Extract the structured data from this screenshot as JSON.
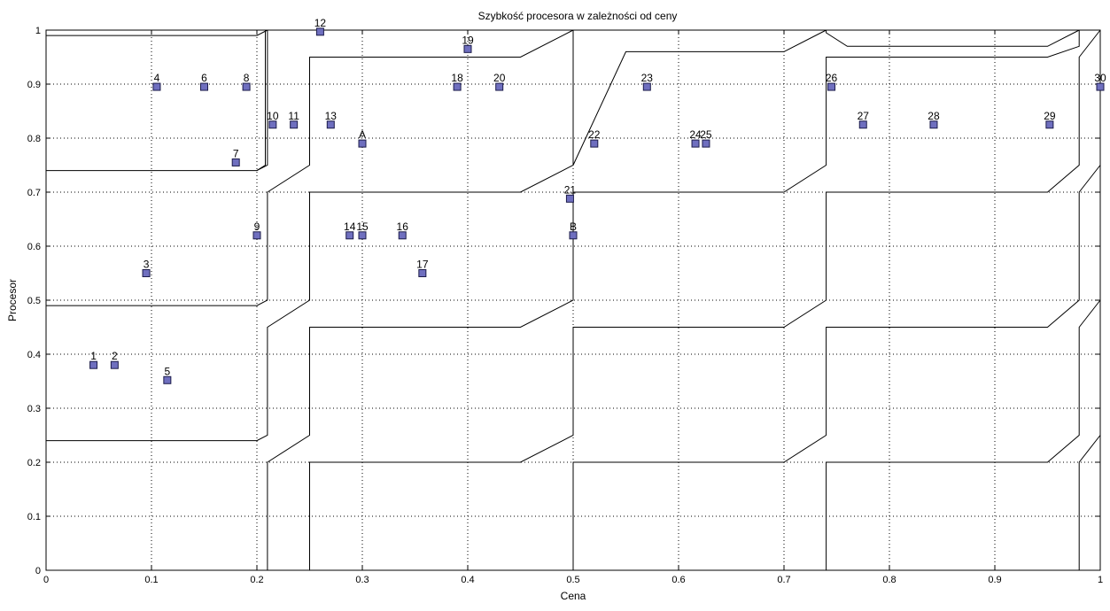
{
  "chart_data": {
    "type": "scatter",
    "title": "Szybkość procesora w zależności od ceny",
    "xlabel": "Cena",
    "ylabel": "Procesor",
    "xlim": [
      0,
      1
    ],
    "ylim": [
      0,
      1
    ],
    "grid": true,
    "xticks": [
      "0",
      "0.1",
      "0.2",
      "0.3",
      "0.4",
      "0.5",
      "0.6",
      "0.7",
      "0.8",
      "0.9",
      "1"
    ],
    "yticks": [
      "0",
      "0.1",
      "0.2",
      "0.3",
      "0.4",
      "0.5",
      "0.6",
      "0.7",
      "0.8",
      "0.9",
      "1"
    ],
    "marker_color": "#6f6fbf",
    "points": [
      {
        "label": "1",
        "x": 0.045,
        "y": 0.38
      },
      {
        "label": "2",
        "x": 0.065,
        "y": 0.38
      },
      {
        "label": "3",
        "x": 0.095,
        "y": 0.55
      },
      {
        "label": "4",
        "x": 0.105,
        "y": 0.895
      },
      {
        "label": "5",
        "x": 0.115,
        "y": 0.352
      },
      {
        "label": "6",
        "x": 0.15,
        "y": 0.895
      },
      {
        "label": "7",
        "x": 0.18,
        "y": 0.755
      },
      {
        "label": "8",
        "x": 0.19,
        "y": 0.895
      },
      {
        "label": "9",
        "x": 0.2,
        "y": 0.62
      },
      {
        "label": "10",
        "x": 0.215,
        "y": 0.825
      },
      {
        "label": "11",
        "x": 0.235,
        "y": 0.825
      },
      {
        "label": "12",
        "x": 0.26,
        "y": 0.997
      },
      {
        "label": "13",
        "x": 0.27,
        "y": 0.825
      },
      {
        "label": "A",
        "x": 0.3,
        "y": 0.79
      },
      {
        "label": "14",
        "x": 0.288,
        "y": 0.62
      },
      {
        "label": "15",
        "x": 0.3,
        "y": 0.62
      },
      {
        "label": "16",
        "x": 0.338,
        "y": 0.62
      },
      {
        "label": "17",
        "x": 0.357,
        "y": 0.55
      },
      {
        "label": "18",
        "x": 0.39,
        "y": 0.895
      },
      {
        "label": "19",
        "x": 0.4,
        "y": 0.965
      },
      {
        "label": "20",
        "x": 0.43,
        "y": 0.895
      },
      {
        "label": "21",
        "x": 0.497,
        "y": 0.688
      },
      {
        "label": "B",
        "x": 0.5,
        "y": 0.62
      },
      {
        "label": "22",
        "x": 0.52,
        "y": 0.79
      },
      {
        "label": "23",
        "x": 0.57,
        "y": 0.895
      },
      {
        "label": "24",
        "x": 0.616,
        "y": 0.79
      },
      {
        "label": "25",
        "x": 0.626,
        "y": 0.79
      },
      {
        "label": "26",
        "x": 0.745,
        "y": 0.895
      },
      {
        "label": "27",
        "x": 0.775,
        "y": 0.825
      },
      {
        "label": "28",
        "x": 0.842,
        "y": 0.825
      },
      {
        "label": "29",
        "x": 0.952,
        "y": 0.825
      },
      {
        "label": "30",
        "x": 1.0,
        "y": 0.895
      }
    ],
    "regions": [
      [
        [
          0,
          0.99
        ],
        [
          0.2,
          0.99
        ],
        [
          0.21,
          1.0
        ]
      ],
      [
        [
          0,
          0.74
        ],
        [
          0.2,
          0.74
        ],
        [
          0.208,
          0.75
        ],
        [
          0.208,
          1.0
        ]
      ],
      [
        [
          0.21,
          1.0
        ],
        [
          0.21,
          0.75
        ],
        [
          0.2,
          0.74
        ]
      ],
      [
        [
          0,
          0.49
        ],
        [
          0.2,
          0.49
        ],
        [
          0.21,
          0.5
        ],
        [
          0.21,
          0.7
        ],
        [
          0.25,
          0.75
        ],
        [
          0.25,
          0.95
        ],
        [
          0.45,
          0.95
        ],
        [
          0.5,
          1.0
        ]
      ],
      [
        [
          0,
          0.24
        ],
        [
          0.2,
          0.24
        ],
        [
          0.21,
          0.25
        ],
        [
          0.21,
          0.45
        ],
        [
          0.25,
          0.5
        ],
        [
          0.25,
          0.7
        ],
        [
          0.45,
          0.7
        ],
        [
          0.5,
          0.75
        ],
        [
          0.5,
          1.0
        ]
      ],
      [
        [
          0.21,
          0
        ],
        [
          0.21,
          0.2
        ],
        [
          0.25,
          0.25
        ],
        [
          0.25,
          0.45
        ],
        [
          0.45,
          0.45
        ],
        [
          0.5,
          0.5
        ],
        [
          0.5,
          0.7
        ],
        [
          0.7,
          0.7
        ],
        [
          0.74,
          0.75
        ],
        [
          0.74,
          0.95
        ],
        [
          0.95,
          0.95
        ],
        [
          0.98,
          0.97
        ],
        [
          0.98,
          1.0
        ]
      ],
      [
        [
          0.25,
          0
        ],
        [
          0.25,
          0.2
        ],
        [
          0.45,
          0.2
        ],
        [
          0.5,
          0.25
        ],
        [
          0.5,
          0.45
        ],
        [
          0.7,
          0.45
        ],
        [
          0.74,
          0.5
        ],
        [
          0.74,
          0.7
        ],
        [
          0.95,
          0.7
        ],
        [
          0.98,
          0.75
        ],
        [
          0.98,
          0.95
        ],
        [
          1.0,
          1.0
        ]
      ],
      [
        [
          0.5,
          0
        ],
        [
          0.5,
          0.2
        ],
        [
          0.7,
          0.2
        ],
        [
          0.74,
          0.25
        ],
        [
          0.74,
          0.45
        ],
        [
          0.95,
          0.45
        ],
        [
          0.98,
          0.5
        ],
        [
          0.98,
          0.7
        ],
        [
          1.0,
          0.75
        ]
      ],
      [
        [
          0.74,
          0
        ],
        [
          0.74,
          0.2
        ],
        [
          0.95,
          0.2
        ],
        [
          0.98,
          0.25
        ],
        [
          0.98,
          0.45
        ],
        [
          1.0,
          0.5
        ]
      ],
      [
        [
          0.98,
          0
        ],
        [
          0.98,
          0.2
        ],
        [
          1.0,
          0.25
        ]
      ],
      [
        [
          0.5,
          1.0
        ],
        [
          0.5,
          0.75
        ],
        [
          0.55,
          0.96
        ],
        [
          0.7,
          0.96
        ],
        [
          0.74,
          1.0
        ]
      ],
      [
        [
          0.74,
          1.0
        ],
        [
          0.74,
          0.995
        ],
        [
          0.76,
          0.97
        ],
        [
          0.95,
          0.97
        ],
        [
          0.98,
          1.0
        ]
      ]
    ]
  }
}
